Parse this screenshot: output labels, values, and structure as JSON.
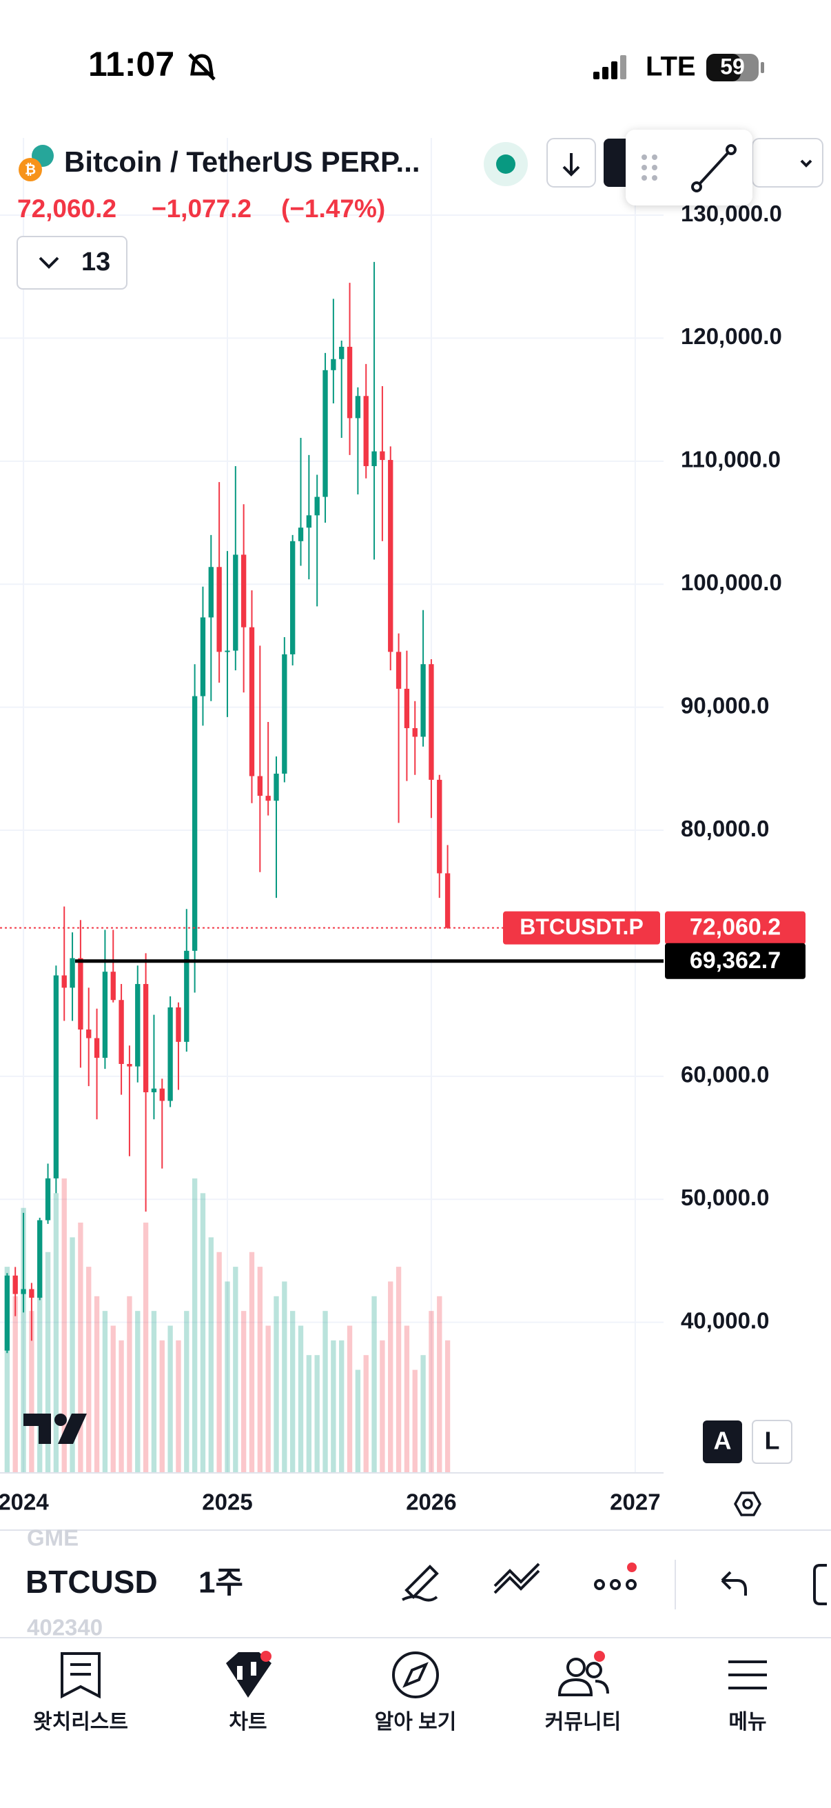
{
  "status_bar": {
    "time": "11:07",
    "network": "LTE",
    "battery": "59"
  },
  "header": {
    "title": "Bitcoin / TetherUS PERP...",
    "price": "72,060.2",
    "change": "−1,077.2",
    "change_pct": "(−1.47%)",
    "indicator_count": "13"
  },
  "chart_data": {
    "type": "candlestick",
    "up_color": "#089981",
    "down_color": "#f23645",
    "grid": true,
    "xlim": [
      2023.885,
      2027.139
    ],
    "xticks": [
      2024,
      2025,
      2026,
      2027
    ],
    "ylim": [
      27760,
      136280
    ],
    "yticks": [
      {
        "value": 130000,
        "label": "130,000.0"
      },
      {
        "value": 120000,
        "label": "120,000.0"
      },
      {
        "value": 110000,
        "label": "110,000.0"
      },
      {
        "value": 100000,
        "label": "100,000.0"
      },
      {
        "value": 90000,
        "label": "90,000.0"
      },
      {
        "value": 80000,
        "label": "80,000.0"
      },
      {
        "value": 60000,
        "label": "60,000.0"
      },
      {
        "value": 50000,
        "label": "50,000.0"
      },
      {
        "value": 40000,
        "label": "40,000.0"
      }
    ],
    "x": [
      2023.92,
      2023.96,
      2024.0,
      2024.04,
      2024.08,
      2024.12,
      2024.16,
      2024.2,
      2024.24,
      2024.28,
      2024.32,
      2024.36,
      2024.4,
      2024.44,
      2024.48,
      2024.52,
      2024.56,
      2024.6,
      2024.64,
      2024.68,
      2024.72,
      2024.76,
      2024.8,
      2024.84,
      2024.88,
      2024.92,
      2024.96,
      2025.0,
      2025.04,
      2025.08,
      2025.12,
      2025.16,
      2025.2,
      2025.24,
      2025.28,
      2025.32,
      2025.36,
      2025.4,
      2025.44,
      2025.48,
      2025.52,
      2025.56,
      2025.6,
      2025.64,
      2025.68,
      2025.72,
      2025.76,
      2025.8,
      2025.84,
      2025.88,
      2025.92,
      2025.96,
      2026.0,
      2026.04,
      2026.08
    ],
    "open": [
      37700,
      43800,
      42300,
      42700,
      42000,
      48300,
      51700,
      68200,
      67200,
      69600,
      63800,
      63100,
      61500,
      68500,
      66200,
      61000,
      60800,
      67500,
      58700,
      59000,
      58000,
      65600,
      62800,
      70200,
      90900,
      97300,
      101400,
      94500,
      94600,
      102400,
      96500,
      84400,
      82800,
      82400,
      84600,
      94300,
      103500,
      104600,
      105600,
      107100,
      117400,
      118300,
      119300,
      113500,
      115300,
      109600,
      110800,
      110100,
      94500,
      91500,
      88300,
      87600,
      93500,
      84100,
      76500
    ],
    "high": [
      44000,
      44500,
      48900,
      43200,
      48500,
      52900,
      69000,
      73800,
      71700,
      72700,
      67200,
      65500,
      71900,
      71900,
      67500,
      62500,
      69000,
      70000,
      65000,
      59800,
      66500,
      66000,
      73600,
      93500,
      99800,
      104000,
      108300,
      102700,
      109600,
      106500,
      99500,
      95000,
      88800,
      86000,
      95700,
      104000,
      111900,
      110500,
      108900,
      118800,
      123200,
      119800,
      124500,
      116000,
      117900,
      126200,
      116100,
      111200,
      96000,
      94600,
      90500,
      97900,
      93900,
      84500,
      78800
    ],
    "low": [
      37500,
      40500,
      40800,
      38500,
      41800,
      48000,
      50500,
      64500,
      64500,
      60700,
      59200,
      56500,
      60600,
      66000,
      58500,
      53500,
      59500,
      49000,
      56500,
      52500,
      57500,
      58900,
      62000,
      66800,
      88500,
      90500,
      92000,
      89200,
      93000,
      91200,
      82200,
      76600,
      81200,
      74500,
      83900,
      93400,
      101500,
      100400,
      98200,
      105000,
      114700,
      111900,
      110500,
      107300,
      108600,
      102000,
      103500,
      93000,
      80600,
      84000,
      84500,
      86800,
      81000,
      74500,
      72000
    ],
    "close": [
      43800,
      42300,
      42700,
      42000,
      48300,
      51700,
      68200,
      67200,
      69600,
      63800,
      63100,
      61500,
      68500,
      66200,
      61000,
      60800,
      67500,
      58700,
      59000,
      58000,
      65600,
      62800,
      70200,
      90900,
      97300,
      101400,
      94500,
      94600,
      102400,
      96500,
      84400,
      82800,
      82400,
      84600,
      94300,
      103500,
      104600,
      105600,
      107100,
      117400,
      118300,
      119300,
      113500,
      115300,
      109600,
      110800,
      110100,
      94500,
      91500,
      88300,
      87600,
      93500,
      84100,
      76500,
      72060.2
    ],
    "volume": [
      70,
      60,
      90,
      55,
      60,
      75,
      95,
      100,
      80,
      85,
      70,
      60,
      55,
      50,
      45,
      60,
      55,
      85,
      55,
      45,
      50,
      45,
      55,
      100,
      95,
      80,
      75,
      65,
      70,
      55,
      75,
      70,
      50,
      60,
      65,
      55,
      50,
      40,
      40,
      55,
      45,
      45,
      50,
      35,
      40,
      60,
      45,
      65,
      70,
      50,
      35,
      40,
      55,
      60,
      45
    ],
    "price_line": {
      "name": "BTCUSDT.P",
      "value": 72060.2,
      "label": "72,060.2"
    },
    "horizontal_line": {
      "value": 69362.7,
      "label": "69,362.7"
    },
    "scale_buttons": [
      "A",
      "L"
    ]
  },
  "toolbar": {
    "symbol": "BTCUSD",
    "interval": "1주",
    "above": "GME",
    "below": "402340"
  },
  "nav": [
    "왓치리스트",
    "차트",
    "알아 보기",
    "커뮤니티",
    "메뉴"
  ]
}
